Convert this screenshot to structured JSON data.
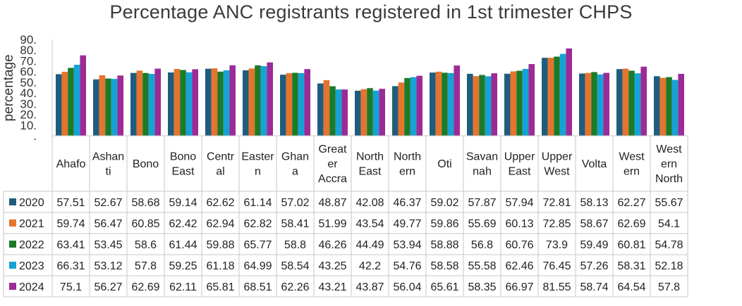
{
  "chart_data": {
    "type": "bar",
    "title": "Percentage ANC registrants registered in 1st trimester CHPS",
    "ylabel": "percentage",
    "xlabel": "",
    "ylim": [
      0,
      90
    ],
    "yticks": [
      "",
      "10.",
      "20.",
      "30.",
      "40.",
      "50.",
      "60.",
      "70.",
      "80.",
      "90."
    ],
    "grid": false,
    "legend": "data-table-rows",
    "categories": [
      [
        "Ahafo"
      ],
      [
        "Ashan",
        "ti"
      ],
      [
        "Bono"
      ],
      [
        "Bono",
        "East"
      ],
      [
        "Centr",
        "al"
      ],
      [
        "Easter",
        "n"
      ],
      [
        "Ghan",
        "a"
      ],
      [
        "Great",
        "er",
        "Accra"
      ],
      [
        "North",
        "East"
      ],
      [
        "North",
        "ern"
      ],
      [
        "Oti"
      ],
      [
        "Savan",
        "nah"
      ],
      [
        "Upper",
        "East"
      ],
      [
        "Upper",
        "West"
      ],
      [
        "Volta"
      ],
      [
        "West",
        "ern"
      ],
      [
        "West",
        "ern",
        "North"
      ]
    ],
    "series": [
      {
        "name": "2020",
        "color": "#1f5d7f",
        "values": [
          "57.51",
          "52.67",
          "58.68",
          "59.14",
          "62.62",
          "61.14",
          "57.02",
          "48.87",
          "42.08",
          "46.37",
          "59.02",
          "57.87",
          "57.94",
          "72.81",
          "58.13",
          "62.27",
          "55.67"
        ]
      },
      {
        "name": "2021",
        "color": "#e6742c",
        "values": [
          "59.74",
          "56.47",
          "60.85",
          "62.42",
          "62.94",
          "62.82",
          "58.41",
          "51.99",
          "43.54",
          "49.77",
          "59.86",
          "55.69",
          "60.13",
          "72.85",
          "58.67",
          "62.69",
          "54.1"
        ]
      },
      {
        "name": "2022",
        "color": "#1d7a28",
        "values": [
          "63.41",
          "53.45",
          "58.6",
          "61.44",
          "59.88",
          "65.77",
          "58.8",
          "46.26",
          "44.49",
          "53.94",
          "58.88",
          "56.8",
          "60.76",
          "73.9",
          "59.49",
          "60.81",
          "54.78"
        ]
      },
      {
        "name": "2023",
        "color": "#15a3d6",
        "values": [
          "66.31",
          "53.12",
          "57.8",
          "59.25",
          "61.18",
          "64.99",
          "58.54",
          "43.25",
          "42.2",
          "54.76",
          "58.58",
          "55.58",
          "62.46",
          "76.45",
          "57.26",
          "58.31",
          "52.18"
        ]
      },
      {
        "name": "2024",
        "color": "#9b2b96",
        "values": [
          "75.1",
          "56.27",
          "62.69",
          "62.11",
          "65.81",
          "68.51",
          "62.26",
          "43.21",
          "43.87",
          "56.04",
          "65.61",
          "58.35",
          "66.97",
          "81.55",
          "58.74",
          "64.54",
          "57.8"
        ]
      }
    ]
  }
}
